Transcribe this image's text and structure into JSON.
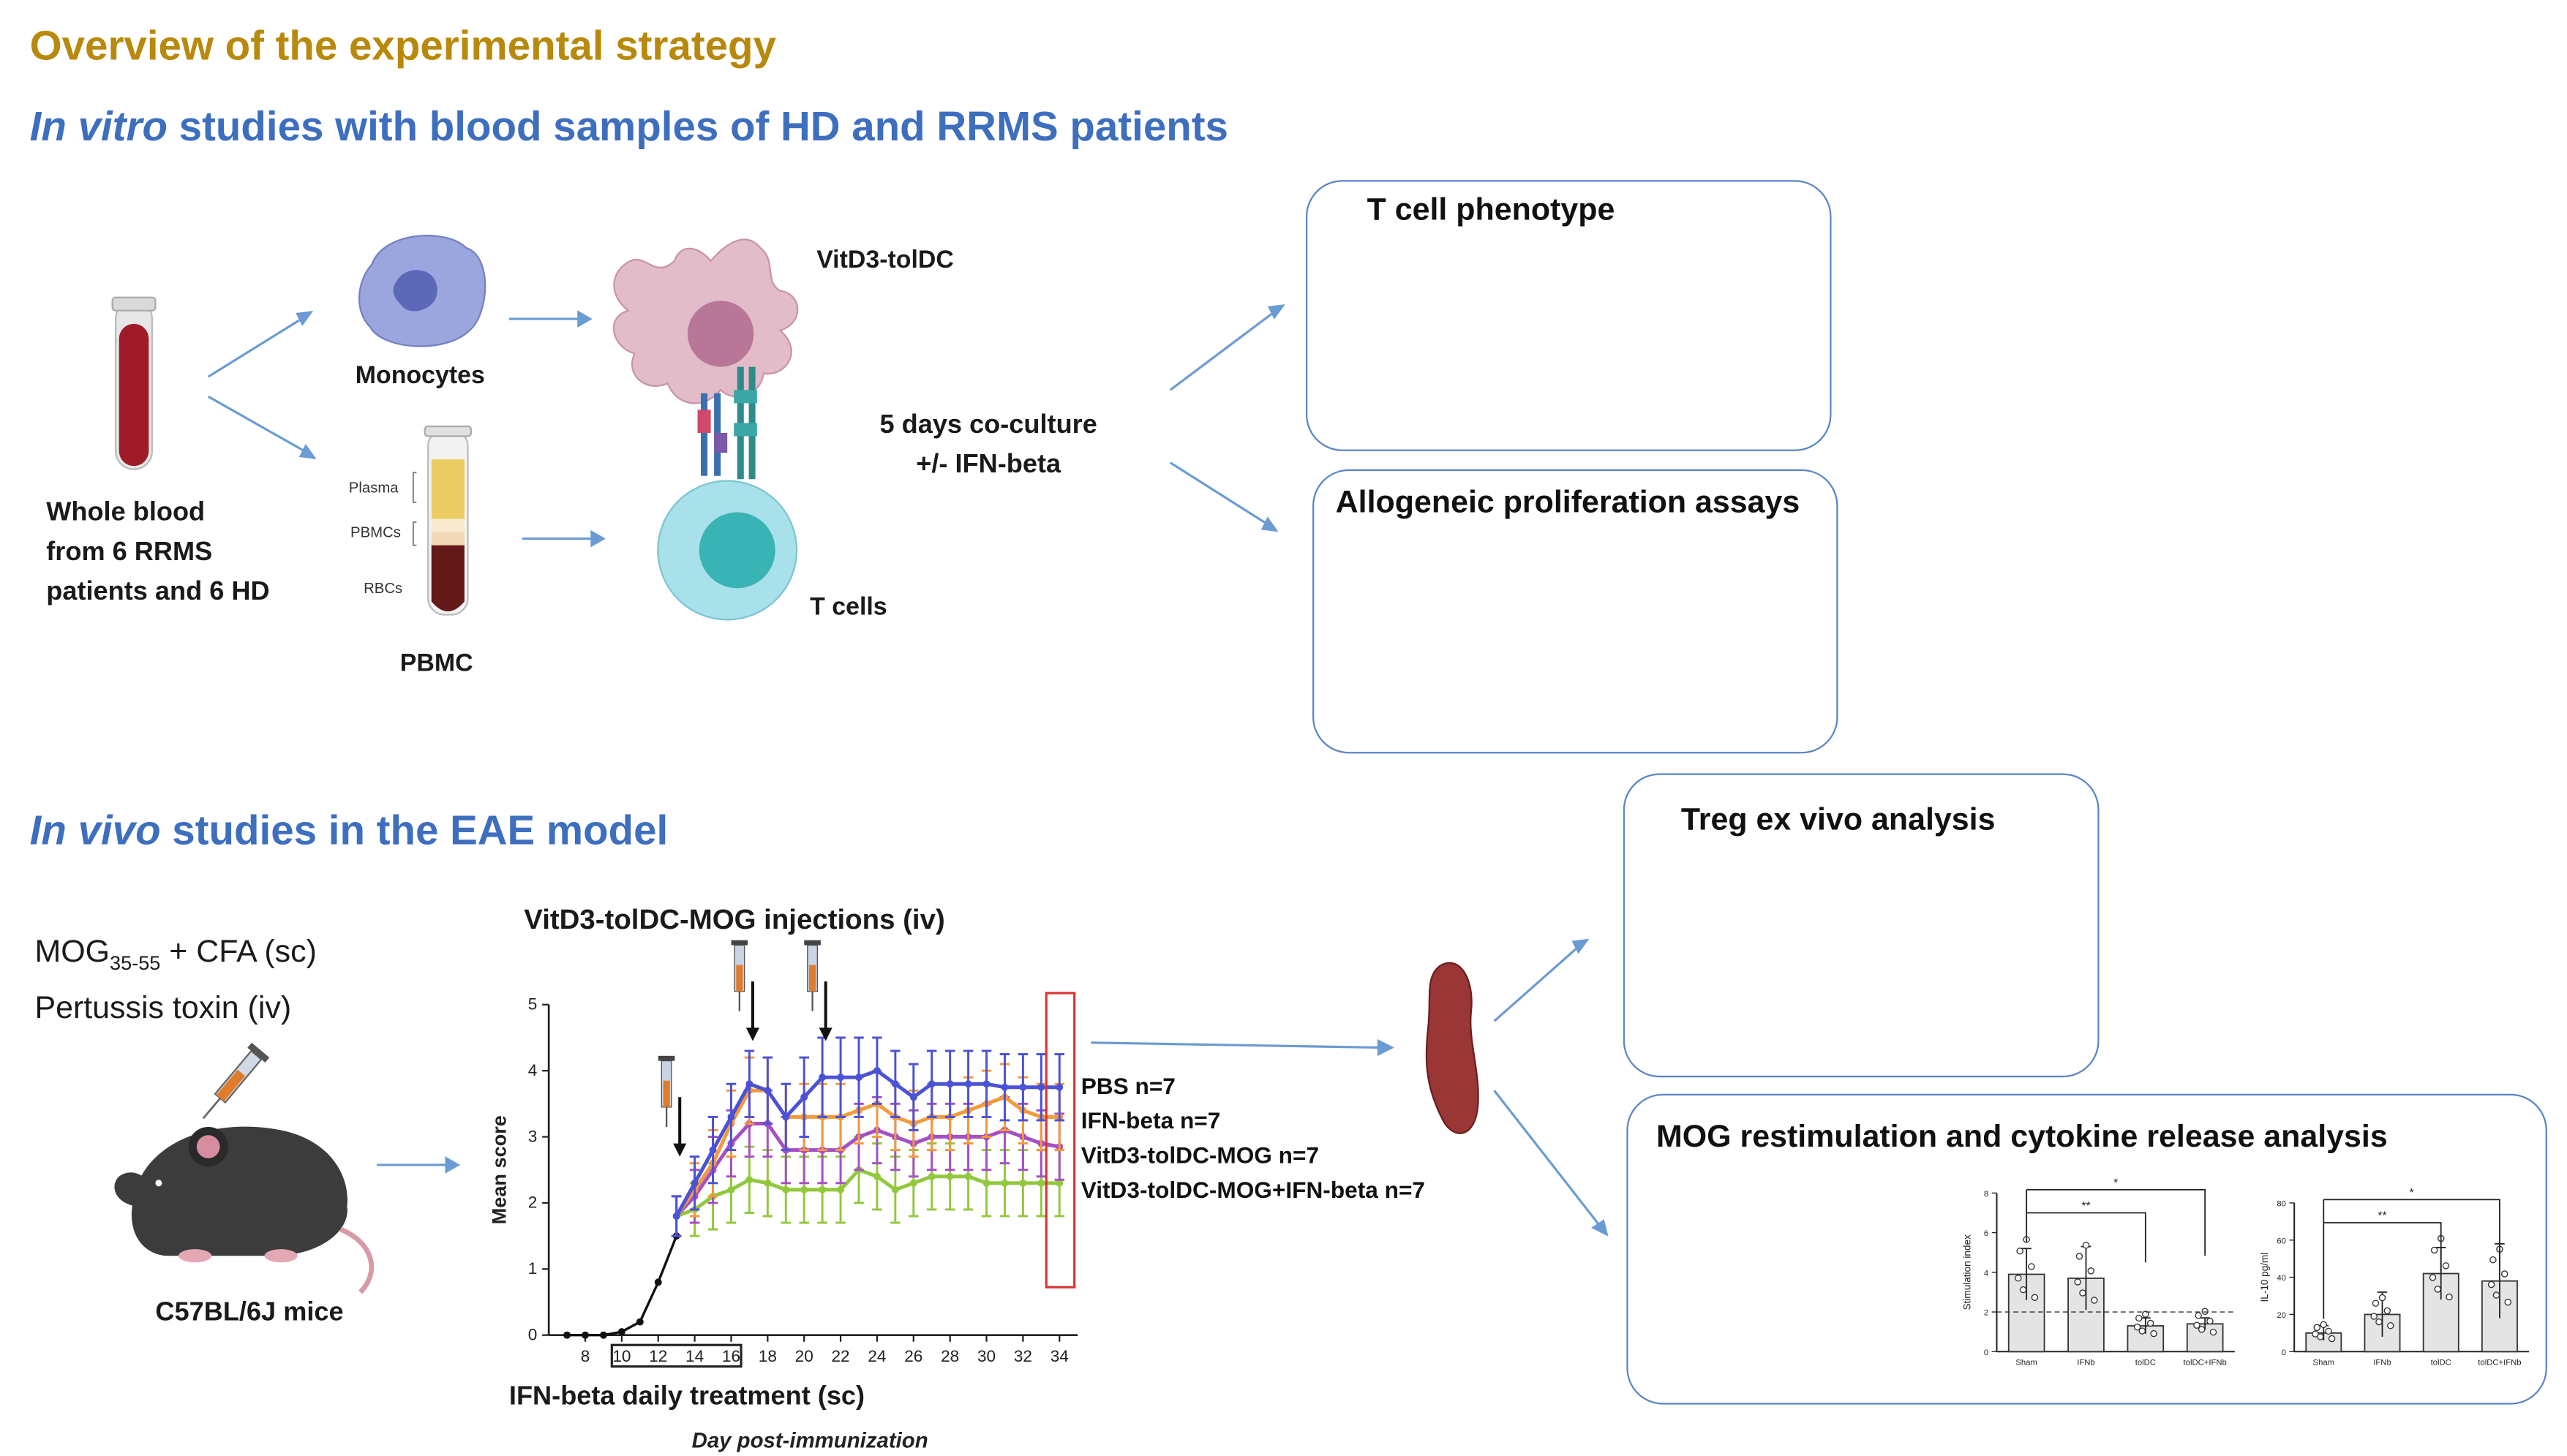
{
  "title": "Overview of the experimental strategy",
  "in_vitro": {
    "heading_italic": "In vitro",
    "heading_rest": " studies with blood samples of HD and RRMS patients",
    "whole_blood": [
      "Whole blood",
      "from 6 RRMS",
      "patients and 6 HD"
    ],
    "monocytes": "Monocytes",
    "pbmc": "PBMC",
    "tube_layers": {
      "plasma": "Plasma",
      "pbmcs": "PBMCs",
      "rbcs": "RBCs"
    },
    "dc_label": "VitD3-tolDC",
    "tcells": "T cells",
    "coculture": [
      "5 days co-culture",
      "+/- IFN-beta"
    ],
    "box_phenotype": "T cell phenotype",
    "box_allo": "Allogeneic proliferation assays"
  },
  "in_vivo": {
    "heading_italic": "In vivo",
    "heading_rest": " studies in the EAE model",
    "mog_line_base": "MOG",
    "mog_line_sub": "35-55",
    "mog_line_rest": " + CFA (sc)",
    "pertussis": "Pertussis toxin (iv)",
    "mice": "C57BL/6J mice",
    "injections": "VitD3-tolDC-MOG injections (iv)",
    "ifn_treatment": "IFN-beta daily treatment (sc)",
    "box_treg": "Treg ex vivo analysis",
    "box_mog": "MOG restimulation and cytokine release analysis"
  },
  "colors": {
    "title": "#b8890c",
    "heading": "#3e6fbf",
    "box_border": "#5a86c5",
    "pbs": "#4a52d6",
    "ifn": "#f29a3c",
    "tdc": "#a64fc4",
    "tdc_ifn": "#92c83e"
  },
  "chart_data": [
    {
      "type": "line",
      "title": "",
      "xlabel": "Day post-immunization",
      "ylabel": "Mean score",
      "xlim": [
        6,
        35
      ],
      "ylim": [
        0,
        5
      ],
      "xticks": [
        8,
        10,
        12,
        14,
        16,
        18,
        20,
        22,
        24,
        26,
        28,
        30,
        32,
        34
      ],
      "yticks": [
        0,
        1,
        2,
        3,
        4,
        5
      ],
      "baseline": {
        "x": [
          7,
          8,
          9,
          10,
          11,
          12,
          13
        ],
        "values": [
          0,
          0,
          0,
          0.05,
          0.2,
          0.8,
          1.5
        ]
      },
      "series": [
        {
          "name": "PBS  n=7",
          "color": "#4a52d6",
          "x": [
            13,
            14,
            15,
            16,
            17,
            18,
            19,
            20,
            21,
            22,
            23,
            24,
            25,
            26,
            27,
            28,
            29,
            30,
            31,
            32,
            33,
            34
          ],
          "values": [
            1.8,
            2.3,
            2.8,
            3.3,
            3.8,
            3.7,
            3.3,
            3.6,
            3.9,
            3.9,
            3.9,
            4.0,
            3.8,
            3.6,
            3.8,
            3.8,
            3.8,
            3.8,
            3.75,
            3.75,
            3.75,
            3.75
          ],
          "err": [
            0.3,
            0.4,
            0.5,
            0.5,
            0.5,
            0.5,
            0.5,
            0.6,
            0.6,
            0.6,
            0.6,
            0.5,
            0.5,
            0.5,
            0.5,
            0.5,
            0.5,
            0.5,
            0.5,
            0.5,
            0.5,
            0.5
          ]
        },
        {
          "name": "IFN-beta n=7",
          "color": "#f29a3c",
          "x": [
            13,
            14,
            15,
            16,
            17,
            18,
            19,
            20,
            21,
            22,
            23,
            24,
            25,
            26,
            27,
            28,
            29,
            30,
            31,
            32,
            33,
            34
          ],
          "values": [
            1.8,
            2.2,
            2.6,
            3.2,
            3.7,
            3.7,
            3.3,
            3.3,
            3.3,
            3.3,
            3.4,
            3.5,
            3.3,
            3.2,
            3.3,
            3.3,
            3.4,
            3.5,
            3.6,
            3.4,
            3.3,
            3.3
          ],
          "err": [
            0.3,
            0.4,
            0.5,
            0.5,
            0.5,
            0.5,
            0.5,
            0.5,
            0.5,
            0.5,
            0.5,
            0.5,
            0.5,
            0.5,
            0.5,
            0.5,
            0.5,
            0.5,
            0.5,
            0.5,
            0.5,
            0.5
          ]
        },
        {
          "name": "VitD3-tolDC-MOG n=7",
          "color": "#a64fc4",
          "x": [
            13,
            14,
            15,
            16,
            17,
            18,
            19,
            20,
            21,
            22,
            23,
            24,
            25,
            26,
            27,
            28,
            29,
            30,
            31,
            32,
            33,
            34
          ],
          "values": [
            1.8,
            2.1,
            2.5,
            2.9,
            3.2,
            3.2,
            2.8,
            2.8,
            2.8,
            2.8,
            3.0,
            3.1,
            3.0,
            2.9,
            3.0,
            3.0,
            3.0,
            3.0,
            3.1,
            3.0,
            2.9,
            2.85
          ],
          "err": [
            0.3,
            0.4,
            0.5,
            0.5,
            0.5,
            0.5,
            0.5,
            0.5,
            0.5,
            0.5,
            0.5,
            0.5,
            0.5,
            0.5,
            0.5,
            0.5,
            0.5,
            0.5,
            0.5,
            0.5,
            0.5,
            0.5
          ]
        },
        {
          "name": "VitD3-tolDC-MOG+IFN-beta n=7",
          "color": "#92c83e",
          "x": [
            13,
            14,
            15,
            16,
            17,
            18,
            19,
            20,
            21,
            22,
            23,
            24,
            25,
            26,
            27,
            28,
            29,
            30,
            31,
            32,
            33,
            34
          ],
          "values": [
            1.8,
            1.9,
            2.1,
            2.2,
            2.35,
            2.3,
            2.2,
            2.2,
            2.2,
            2.2,
            2.5,
            2.4,
            2.2,
            2.3,
            2.4,
            2.4,
            2.4,
            2.3,
            2.3,
            2.3,
            2.3,
            2.3
          ],
          "err": [
            0.3,
            0.4,
            0.5,
            0.5,
            0.5,
            0.5,
            0.5,
            0.5,
            0.5,
            0.5,
            0.5,
            0.5,
            0.5,
            0.5,
            0.5,
            0.5,
            0.5,
            0.5,
            0.5,
            0.5,
            0.5,
            0.5
          ]
        }
      ],
      "injection_days": [
        13,
        17,
        21
      ],
      "ifn_boxed_ticks": [
        10,
        12,
        14,
        16
      ]
    },
    {
      "type": "bar",
      "ylabel": "Stimulation index",
      "categories": [
        "Sham",
        "IFNb",
        "tolDC",
        "tolDC+IFNb"
      ],
      "values": [
        3.9,
        3.7,
        1.3,
        1.4
      ],
      "err": [
        1.3,
        1.6,
        0.4,
        0.3
      ],
      "yticks": [
        0,
        2,
        4,
        6,
        8
      ],
      "ylim": [
        0,
        8
      ],
      "reference_line": 2,
      "significance": [
        "**",
        "*"
      ]
    },
    {
      "type": "bar",
      "ylabel": "IL-10 pg/ml",
      "categories": [
        "Sham",
        "IFNb",
        "tolDC",
        "tolDC+IFNb"
      ],
      "values": [
        10,
        20,
        42,
        38
      ],
      "err": [
        4,
        12,
        14,
        20
      ],
      "yticks": [
        0,
        20,
        40,
        60,
        80
      ],
      "ylim": [
        0,
        80
      ],
      "significance": [
        "**",
        "*"
      ]
    }
  ]
}
